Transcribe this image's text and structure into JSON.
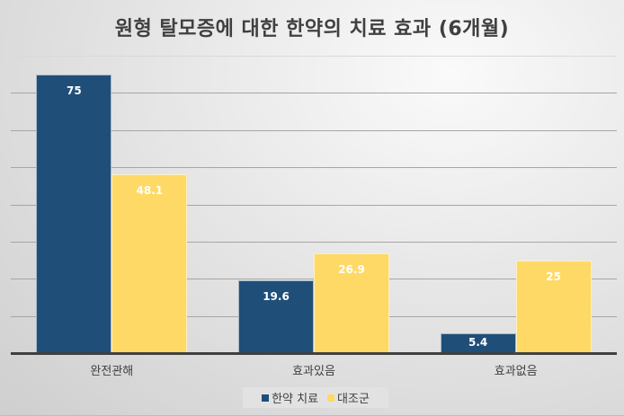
{
  "chart_data": {
    "type": "bar",
    "title": "원형 탈모증에 대한 한약의 치료 효과 (6개월)",
    "categories": [
      "완전관해",
      "효과있음",
      "효과없음"
    ],
    "series": [
      {
        "name": "한약 치료",
        "color": "#1f4e79",
        "values": [
          75,
          19.6,
          5.4
        ],
        "labels": [
          "75",
          "19.6",
          "5.4"
        ]
      },
      {
        "name": "대조군",
        "color": "#ffd966",
        "values": [
          48.1,
          26.9,
          25
        ],
        "labels": [
          "48.1",
          "26.9",
          "25"
        ]
      }
    ],
    "xlabel": "",
    "ylabel": "",
    "ylim": [
      0,
      80
    ],
    "gridlines": [
      10,
      20,
      30,
      40,
      50,
      60,
      70,
      80
    ],
    "grid": true,
    "y_tick_labels_shown": false,
    "legend_position": "bottom"
  }
}
